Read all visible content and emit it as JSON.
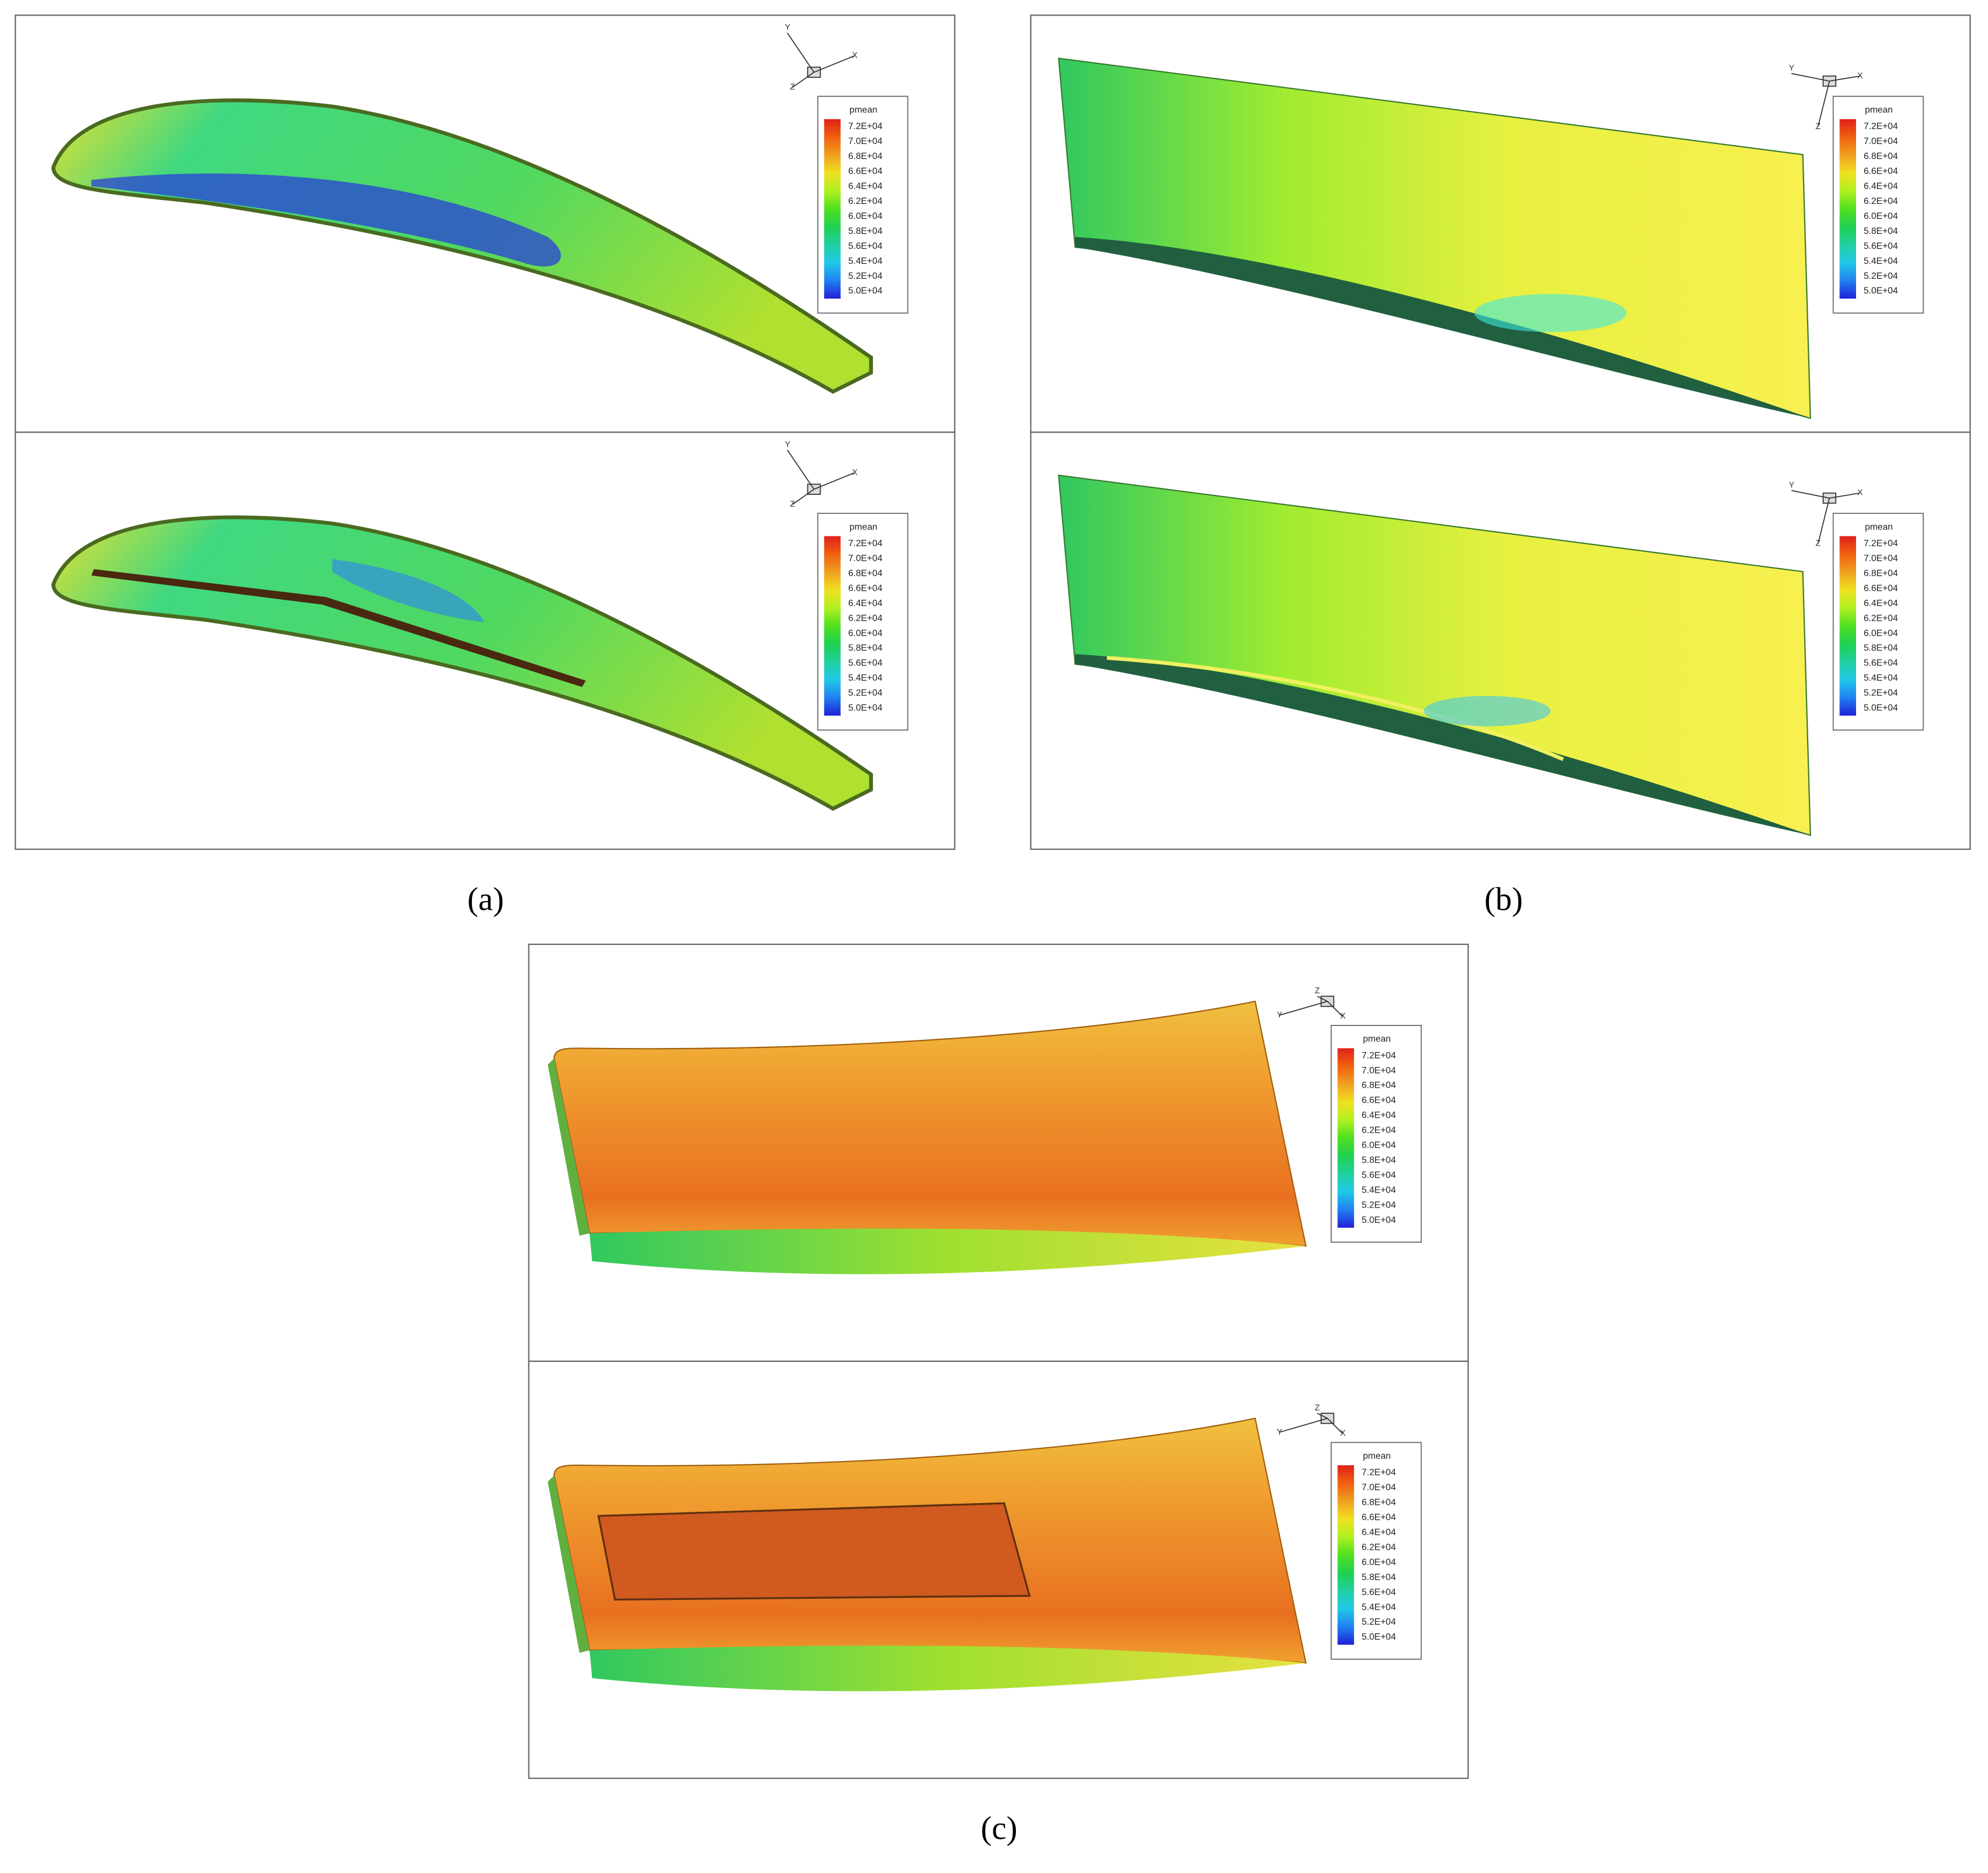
{
  "legend": {
    "title": "pmean",
    "labels": [
      "7.2E+04",
      "7.0E+04",
      "6.8E+04",
      "6.6E+04",
      "6.4E+04",
      "6.2E+04",
      "6.0E+04",
      "5.8E+04",
      "5.6E+04",
      "5.4E+04",
      "5.2E+04",
      "5.0E+04"
    ]
  },
  "figures": [
    {
      "caption": "(a)",
      "panels": [
        {
          "axes": [
            "Y",
            "X",
            "Z"
          ]
        },
        {
          "axes": [
            "Y",
            "X",
            "Z"
          ]
        }
      ]
    },
    {
      "caption": "(b)",
      "panels": [
        {
          "axes": [
            "Y",
            "X",
            "Z"
          ]
        },
        {
          "axes": [
            "Y",
            "X",
            "Z"
          ]
        }
      ]
    },
    {
      "caption": "(c)",
      "panels": [
        {
          "axes": [
            "Z",
            "Y",
            "X"
          ]
        },
        {
          "axes": [
            "Z",
            "Y",
            "X"
          ]
        }
      ]
    }
  ]
}
